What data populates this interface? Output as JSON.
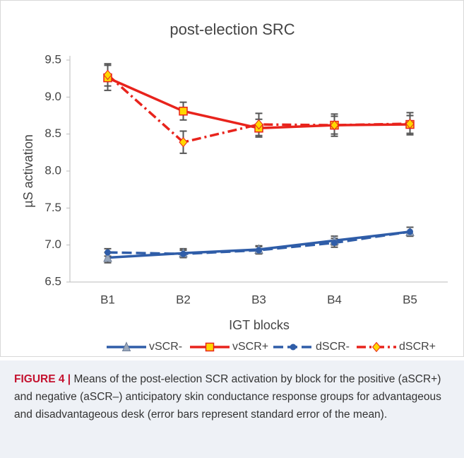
{
  "chart_data": {
    "type": "line",
    "title": "post-election SRC",
    "xlabel": "IGT blocks",
    "ylabel": "µS activation",
    "categories": [
      "B1",
      "B2",
      "B3",
      "B4",
      "B5"
    ],
    "ylim": [
      6.5,
      9.5
    ],
    "yticks": [
      6.5,
      {
        "value": 7,
        "label": "7.0"
      },
      7.5,
      {
        "value": 8,
        "label": "8.0"
      },
      8.5,
      {
        "value": 9,
        "label": "9.0"
      },
      9.5
    ],
    "grid": false,
    "legend": "bottom",
    "series": [
      {
        "name": "vSCR-",
        "color": "#2f5da8",
        "dash": "solid",
        "marker": "triangle",
        "marker_color": "#9aa8bc",
        "values": [
          6.83,
          6.89,
          6.94,
          7.06,
          7.18
        ],
        "errors": [
          0.07,
          0.06,
          0.05,
          0.06,
          0.06
        ]
      },
      {
        "name": "vSCR+",
        "color": "#e8231c",
        "dash": "solid",
        "marker": "square",
        "marker_color": "#ffd700",
        "values": [
          9.26,
          8.81,
          8.58,
          8.62,
          8.63
        ],
        "errors": [
          0.17,
          0.12,
          0.12,
          0.12,
          0.12
        ]
      },
      {
        "name": "dSCR-",
        "color": "#2f5da8",
        "dash": "dashed",
        "marker": "circle",
        "marker_color": "#2f5da8",
        "values": [
          6.9,
          6.88,
          6.93,
          7.03,
          7.18
        ],
        "errors": [
          0.05,
          0.05,
          0.05,
          0.06,
          0.06
        ]
      },
      {
        "name": "dSCR+",
        "color": "#e8231c",
        "dash": "dashdot",
        "marker": "diamond",
        "marker_color": "#ffd700",
        "values": [
          9.3,
          8.39,
          8.63,
          8.62,
          8.64
        ],
        "errors": [
          0.15,
          0.15,
          0.15,
          0.15,
          0.15
        ]
      }
    ]
  },
  "caption": {
    "label": "FIGURE 4 |",
    "text": "Means of the post-election SCR activation by block for the positive (aSCR+) and negative (aSCR–) anticipatory skin conductance response groups for advantageous and disadvantageous desk (error bars represent standard error of the mean)."
  }
}
